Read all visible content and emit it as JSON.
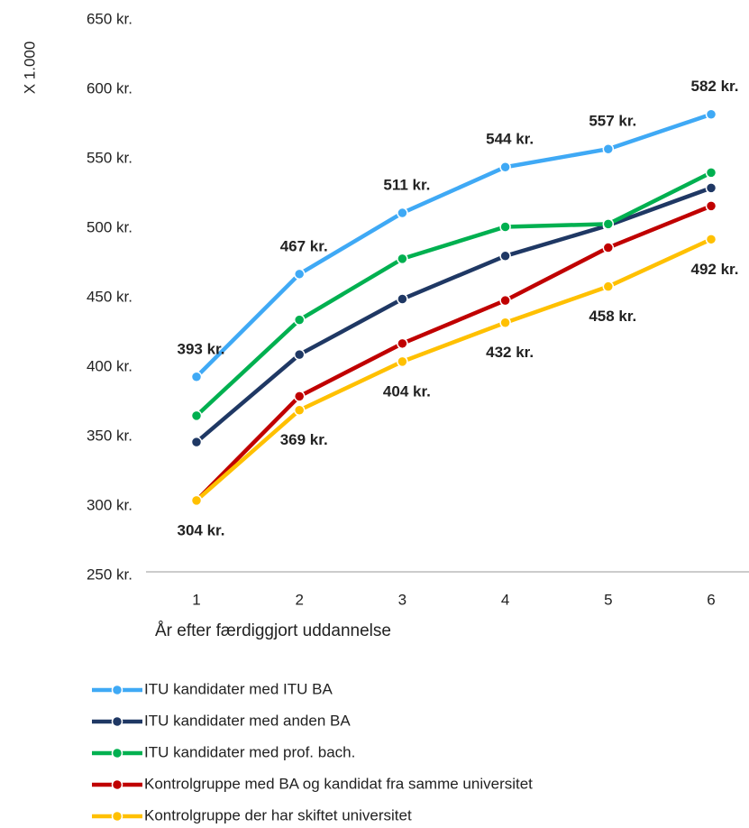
{
  "chart_data": {
    "type": "line",
    "y_label": "X 1.000",
    "x_label": "År efter færdiggjort uddannelse",
    "categories": [
      "1",
      "2",
      "3",
      "4",
      "5",
      "6"
    ],
    "ylim": [
      250,
      650
    ],
    "yticks": [
      {
        "value": 250,
        "label": "250 kr."
      },
      {
        "value": 300,
        "label": "300 kr."
      },
      {
        "value": 350,
        "label": "350 kr."
      },
      {
        "value": 400,
        "label": "400 kr."
      },
      {
        "value": 450,
        "label": "450 kr."
      },
      {
        "value": 500,
        "label": "500 kr."
      },
      {
        "value": 550,
        "label": "550 kr."
      },
      {
        "value": 600,
        "label": "600 kr."
      },
      {
        "value": 650,
        "label": "650 kr."
      }
    ],
    "grid": false,
    "legend": "bottom",
    "series": [
      {
        "name": "ITU kandidater med ITU BA",
        "color": "#3fa9f5",
        "values": [
          393,
          467,
          511,
          544,
          557,
          582
        ],
        "value_labels": [
          "393 kr.",
          "467 kr.",
          "511 kr.",
          "544 kr.",
          "557 kr.",
          "582 kr."
        ],
        "label_position": "above"
      },
      {
        "name": "ITU kandidater med anden BA",
        "color": "#1f3864",
        "values": [
          346,
          409,
          449,
          480,
          502,
          529
        ]
      },
      {
        "name": "ITU kandidater med prof. bach.",
        "color": "#00b050",
        "values": [
          365,
          434,
          478,
          501,
          503,
          540
        ]
      },
      {
        "name": "Kontrolgruppe med BA og kandidat fra samme universitet",
        "color": "#c00000",
        "values": [
          304,
          379,
          417,
          448,
          486,
          516
        ]
      },
      {
        "name": "Kontrolgruppe der har skiftet universitet",
        "color": "#ffc000",
        "values": [
          304,
          369,
          404,
          432,
          458,
          492
        ],
        "value_labels": [
          "304 kr.",
          "369 kr.",
          "404 kr.",
          "432 kr.",
          "458 kr.",
          "492 kr."
        ],
        "label_position": "below"
      }
    ]
  }
}
